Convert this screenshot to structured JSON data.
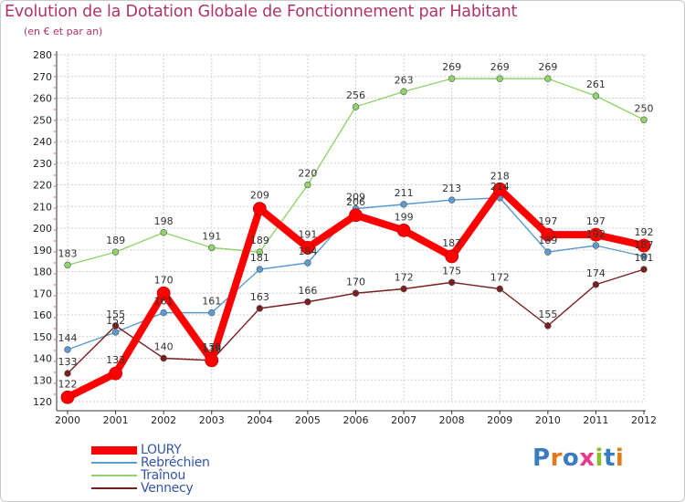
{
  "title": "Evolution de la Dotation Globale de Fonctionnement par Habitant",
  "subtitle": "(en € et par an)",
  "logo": {
    "text": "Proxiti",
    "letter_colors": [
      "#3a7cc0",
      "#e07a1f",
      "#3a7cc0",
      "#e83a8c",
      "#8bbd2e",
      "#3a7cc0",
      "#e07a1f"
    ]
  },
  "chart_data": {
    "type": "line",
    "x": [
      2000,
      2001,
      2002,
      2003,
      2004,
      2005,
      2006,
      2007,
      2008,
      2009,
      2010,
      2011,
      2012
    ],
    "x_tick_labels": [
      "2000",
      "2001",
      "2002",
      "2003",
      "2004",
      "2005",
      "2006",
      "2007",
      "2008",
      "2009",
      "2010",
      "2011",
      "2012"
    ],
    "ylim": [
      120,
      280
    ],
    "y_ticks": [
      120,
      130,
      140,
      150,
      160,
      170,
      180,
      190,
      200,
      210,
      220,
      230,
      240,
      250,
      260,
      270,
      280
    ],
    "grid": true,
    "legend_position": "bottom-left",
    "series": [
      {
        "name": "Traînou",
        "color": "#8fd36b",
        "values": [
          183,
          189,
          198,
          191,
          189,
          220,
          256,
          263,
          269,
          269,
          269,
          261,
          250
        ]
      },
      {
        "name": "Rebréchien",
        "color": "#5a9bd0",
        "values": [
          144,
          152,
          161,
          161,
          181,
          184,
          209,
          211,
          213,
          214,
          189,
          192,
          187
        ]
      },
      {
        "name": "Vennecy",
        "color": "#7a1e1e",
        "values": [
          133,
          155,
          140,
          139,
          163,
          166,
          170,
          172,
          175,
          172,
          155,
          174,
          181
        ]
      },
      {
        "name": "LOURY",
        "color": "#ff0000",
        "values": [
          122,
          133,
          170,
          139,
          209,
          191,
          206,
          199,
          187,
          218,
          197,
          197,
          192
        ]
      }
    ],
    "legend_order": [
      "LOURY",
      "Rebréchien",
      "Traînou",
      "Vennecy"
    ]
  }
}
